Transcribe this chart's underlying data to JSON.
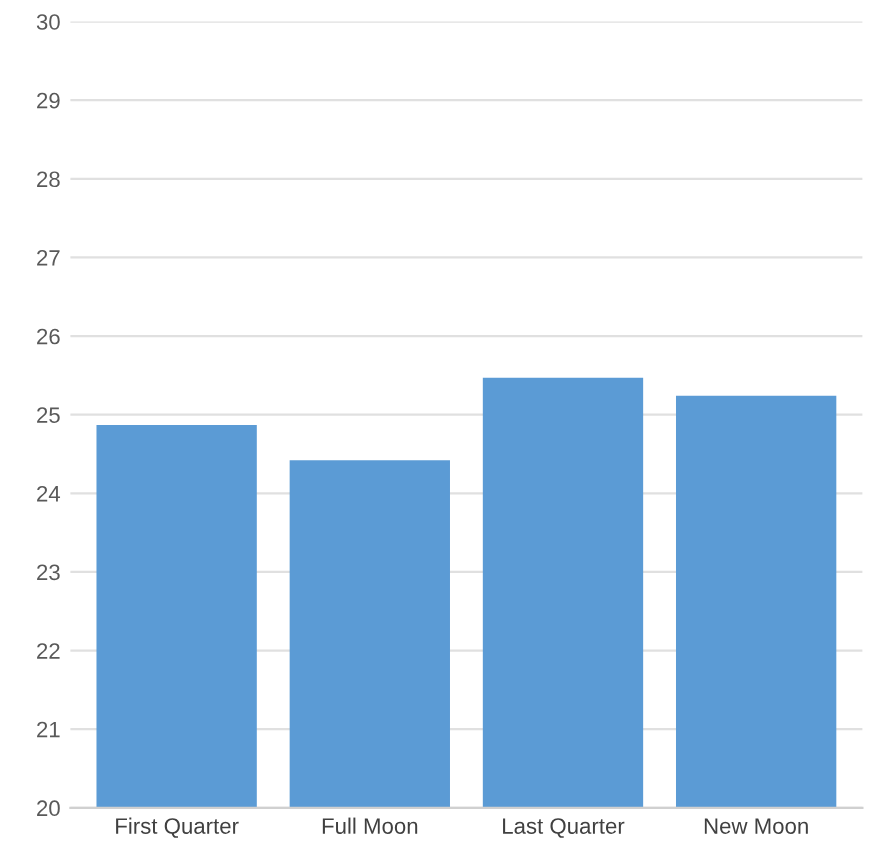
{
  "chart_data": {
    "type": "bar",
    "categories": [
      "First Quarter",
      "Full Moon",
      "Last Quarter",
      "New Moon"
    ],
    "values": [
      24.87,
      24.42,
      25.47,
      25.24
    ],
    "color": "#5b9bd5",
    "ylim": [
      20,
      30
    ],
    "yticks": [
      20,
      21,
      22,
      23,
      24,
      25,
      26,
      27,
      28,
      29,
      30
    ],
    "grid": "y"
  }
}
